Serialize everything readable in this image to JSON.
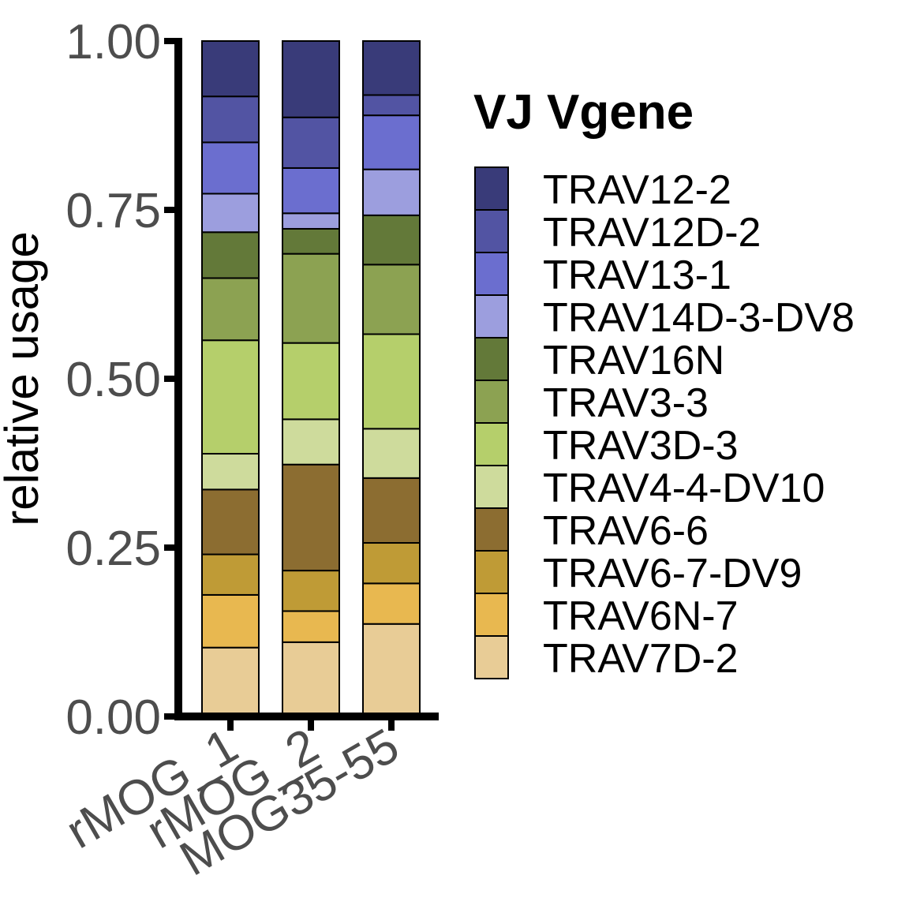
{
  "chart_data": {
    "type": "bar",
    "stacked": true,
    "title": "",
    "xlabel": "",
    "ylabel": "relative usage",
    "ylim": [
      0,
      1
    ],
    "y_ticks": [
      "0.00",
      "0.25",
      "0.50",
      "0.75",
      "1.00"
    ],
    "grid": false,
    "legend_title": "VJ Vgene",
    "legend_position": "right",
    "categories": [
      "rMOG_1",
      "rMOG_2",
      "MOG35-55"
    ],
    "series": [
      {
        "name": "TRAV7D-2",
        "color": "#E8CC96",
        "values": [
          0.102,
          0.11,
          0.137
        ]
      },
      {
        "name": "TRAV6N-7",
        "color": "#E8B850",
        "values": [
          0.078,
          0.046,
          0.06
        ]
      },
      {
        "name": "TRAV6-7-DV9",
        "color": "#BF9B36",
        "values": [
          0.06,
          0.06,
          0.06
        ]
      },
      {
        "name": "TRAV6-6",
        "color": "#8C6D31",
        "values": [
          0.096,
          0.157,
          0.096
        ]
      },
      {
        "name": "TRAV4-4-DV10",
        "color": "#CEDB9C",
        "values": [
          0.053,
          0.067,
          0.073
        ]
      },
      {
        "name": "TRAV3D-3",
        "color": "#B5CF6B",
        "values": [
          0.168,
          0.113,
          0.14
        ]
      },
      {
        "name": "TRAV3-3",
        "color": "#8CA252",
        "values": [
          0.092,
          0.132,
          0.103
        ]
      },
      {
        "name": "TRAV16N",
        "color": "#637939",
        "values": [
          0.068,
          0.037,
          0.073
        ]
      },
      {
        "name": "TRAV14D-3-DV8",
        "color": "#9C9EDE",
        "values": [
          0.057,
          0.023,
          0.068
        ]
      },
      {
        "name": "TRAV13-1",
        "color": "#6B6ECF",
        "values": [
          0.076,
          0.067,
          0.08
        ]
      },
      {
        "name": "TRAV12D-2",
        "color": "#5254A3",
        "values": [
          0.068,
          0.075,
          0.03
        ]
      },
      {
        "name": "TRAV12-2",
        "color": "#393B79",
        "values": [
          0.082,
          0.113,
          0.08
        ]
      }
    ]
  }
}
